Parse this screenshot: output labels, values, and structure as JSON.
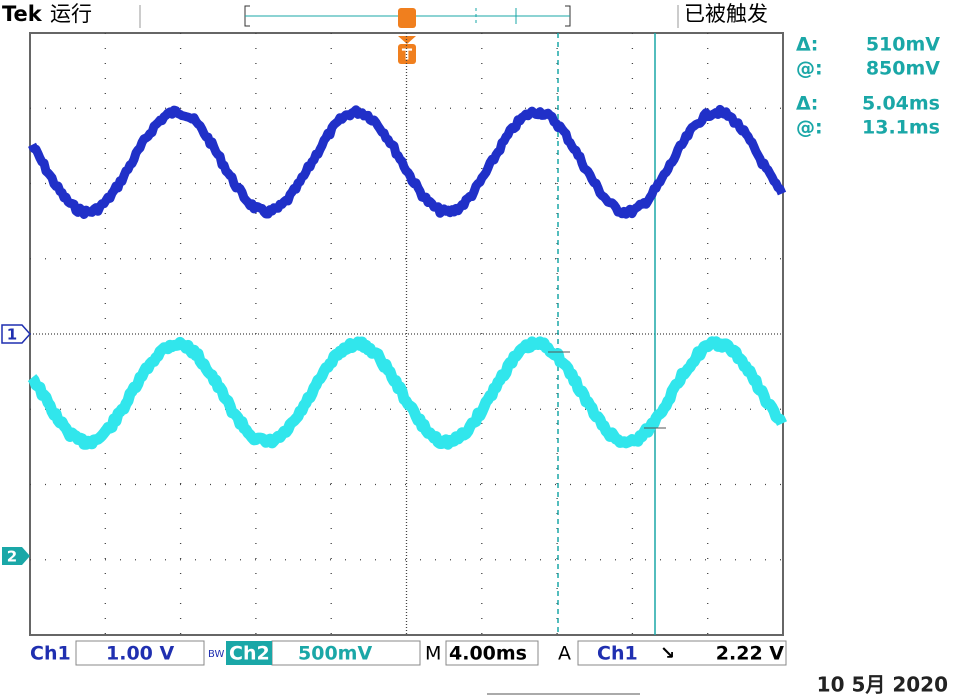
{
  "header": {
    "brand": "Tek",
    "status": "运行",
    "trigger_state": "已被触发"
  },
  "markers": {
    "ch1": "1",
    "ch2": "2",
    "trigger": "T"
  },
  "cursors": [
    {
      "delta_label": "Δ:",
      "delta": "510mV",
      "at_label": "@:",
      "at": "850mV"
    },
    {
      "delta_label": "Δ:",
      "delta": "5.04ms",
      "at_label": "@:",
      "at": "13.1ms"
    }
  ],
  "status_bar": {
    "ch1_label": "Ch1",
    "ch1_scale": "1.00 V",
    "bw": "BW",
    "ch2_label": "Ch2",
    "ch2_scale": "500mV",
    "timebase_label": "M",
    "timebase": "4.00ms",
    "trigger_mode": "A",
    "trigger_source": "Ch1",
    "trigger_slope": "↘",
    "trigger_level": "2.22 V"
  },
  "date": "10 5月 2020"
}
